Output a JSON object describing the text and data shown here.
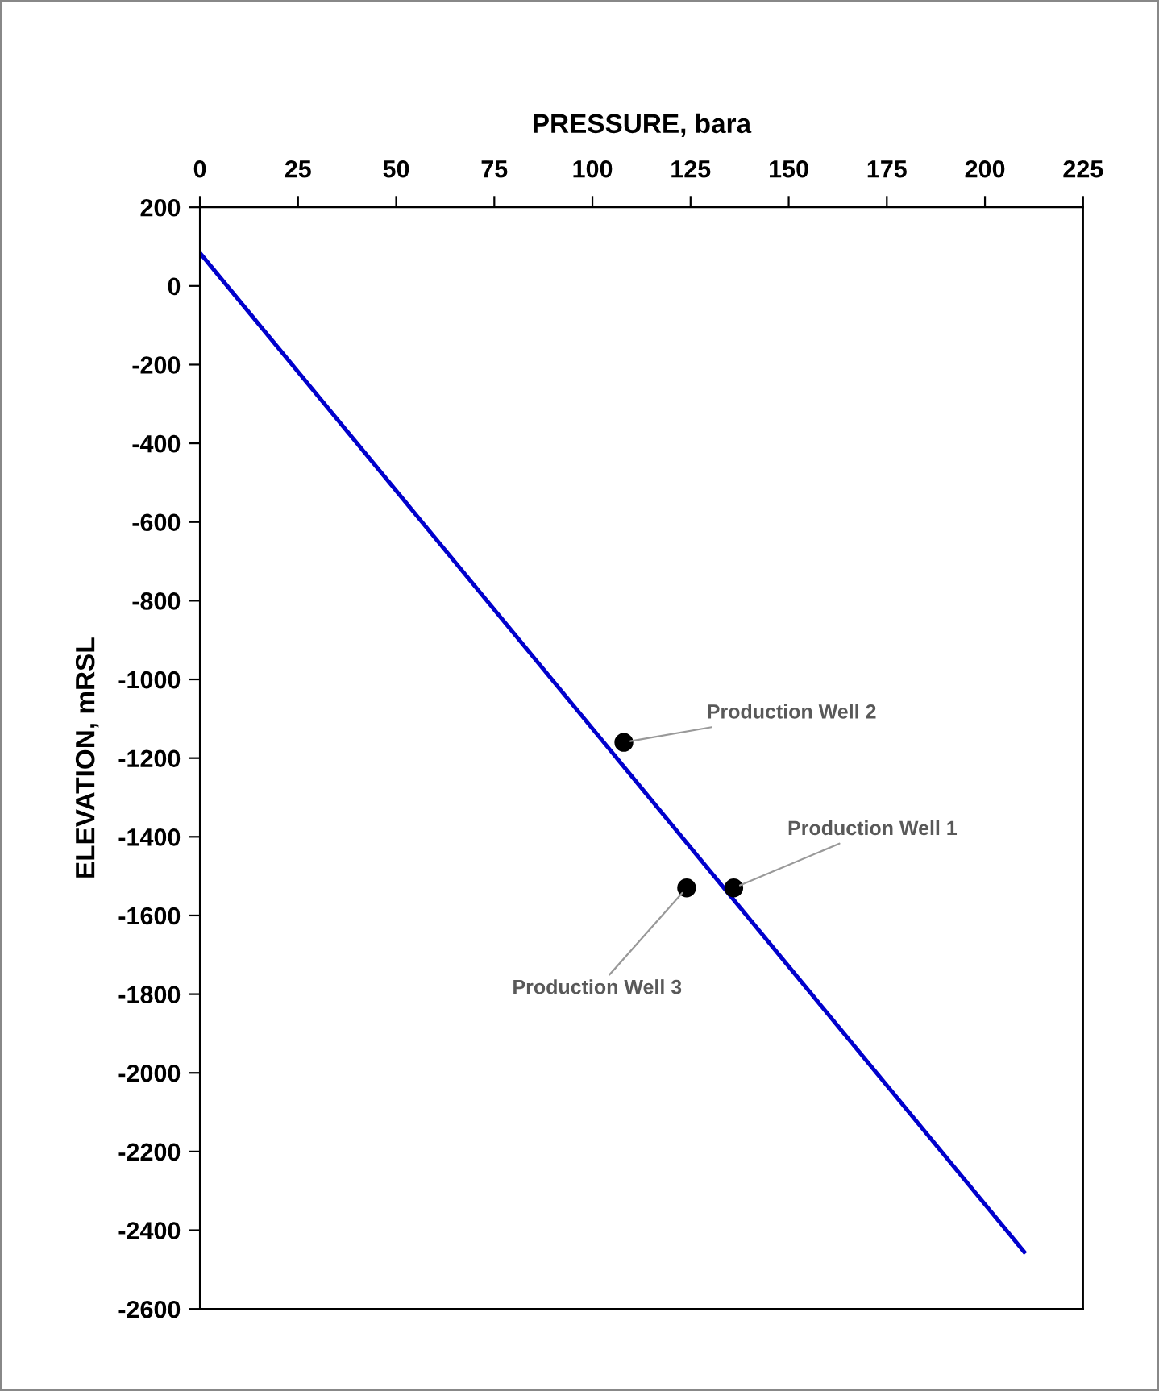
{
  "chart_data": {
    "type": "line",
    "xlabel": "PRESSURE, bara",
    "ylabel": "ELEVATION, mRSL",
    "xlim": [
      0,
      225
    ],
    "xticks": [
      0,
      25,
      50,
      75,
      100,
      125,
      150,
      175,
      200,
      225
    ],
    "ylim": [
      -2600,
      200
    ],
    "yticks": [
      -2600,
      -2400,
      -2200,
      -2000,
      -1800,
      -1600,
      -1400,
      -1200,
      -1000,
      -800,
      -600,
      -400,
      -200,
      0,
      200
    ],
    "grid": false,
    "legend": false,
    "series": [
      {
        "color": "#0000cc",
        "x": [
          0,
          210
        ],
        "values": [
          84,
          -2455
        ],
        "marker": "none"
      },
      {
        "type": "scatter",
        "color": "#000000",
        "x": [
          136,
          108,
          124
        ],
        "values": [
          -1530,
          -1160,
          -1530
        ],
        "marker": "circle"
      }
    ],
    "annotations": [
      {
        "text": "Production Well 1",
        "x": 136,
        "y": -1530
      },
      {
        "text": "Production Well 2",
        "x": 108,
        "y": -1160
      },
      {
        "text": "Production Well 3",
        "x": 124,
        "y": -1530
      }
    ]
  }
}
